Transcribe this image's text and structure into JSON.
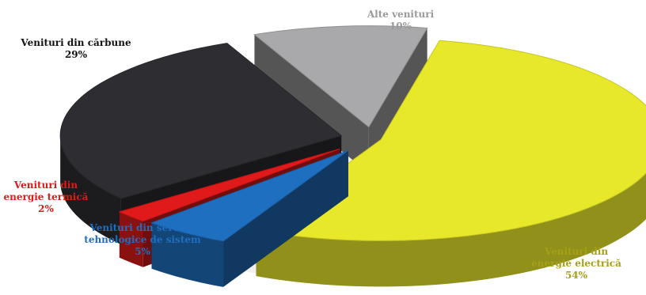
{
  "chart_data": {
    "type": "pie",
    "style": "3d-exploded",
    "title": "",
    "slices": [
      {
        "label_lines": [
          "Venituri din",
          "energie electrică"
        ],
        "percent_label": "54%",
        "value": 54,
        "color": "#e8e82a",
        "label_color": "#a6a019"
      },
      {
        "label_lines": [
          "Venituri din servicii",
          "tehnologice de sistem"
        ],
        "percent_label": "5%",
        "value": 5,
        "color": "#1f6fc0",
        "label_color": "#1f6fc0"
      },
      {
        "label_lines": [
          "Venituri din",
          "energie termică"
        ],
        "percent_label": "2%",
        "value": 2,
        "color": "#e01a1a",
        "label_color": "#e01a1a"
      },
      {
        "label_lines": [
          "Venituri din cărbune"
        ],
        "percent_label": "29%",
        "value": 29,
        "color": "#2d2d32",
        "label_color": "#111111"
      },
      {
        "label_lines": [
          "Alte venituri"
        ],
        "percent_label": "10%",
        "value": 10,
        "color": "#a9a9ab",
        "label_color": "#9a9a9a"
      }
    ]
  }
}
